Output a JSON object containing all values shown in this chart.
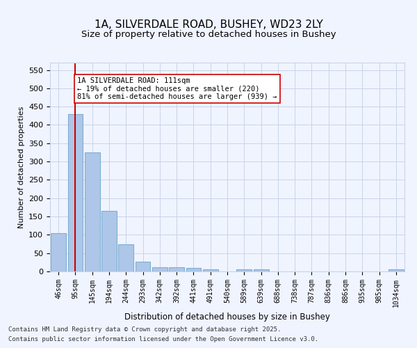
{
  "title1": "1A, SILVERDALE ROAD, BUSHEY, WD23 2LY",
  "title2": "Size of property relative to detached houses in Bushey",
  "xlabel": "Distribution of detached houses by size in Bushey",
  "ylabel": "Number of detached properties",
  "categories": [
    "46sqm",
    "95sqm",
    "145sqm",
    "194sqm",
    "244sqm",
    "293sqm",
    "342sqm",
    "392sqm",
    "441sqm",
    "491sqm",
    "540sqm",
    "589sqm",
    "639sqm",
    "688sqm",
    "738sqm",
    "787sqm",
    "836sqm",
    "886sqm",
    "935sqm",
    "985sqm",
    "1034sqm"
  ],
  "values": [
    105,
    430,
    325,
    165,
    75,
    27,
    12,
    12,
    10,
    5,
    0,
    5,
    5,
    0,
    0,
    0,
    0,
    0,
    0,
    0,
    5
  ],
  "bar_color": "#aec6e8",
  "bar_edge_color": "#7aafd4",
  "vline_x": 1,
  "vline_color": "#cc0000",
  "annotation_text": "1A SILVERDALE ROAD: 111sqm\n← 19% of detached houses are smaller (220)\n81% of semi-detached houses are larger (939) →",
  "annotation_box_color": "#ffffff",
  "annotation_box_edge": "#cc0000",
  "ylim": [
    0,
    570
  ],
  "yticks": [
    0,
    50,
    100,
    150,
    200,
    250,
    300,
    350,
    400,
    450,
    500,
    550
  ],
  "footer1": "Contains HM Land Registry data © Crown copyright and database right 2025.",
  "footer2": "Contains public sector information licensed under the Open Government Licence v3.0.",
  "bg_color": "#f0f4ff",
  "plot_bg_color": "#f0f4ff"
}
